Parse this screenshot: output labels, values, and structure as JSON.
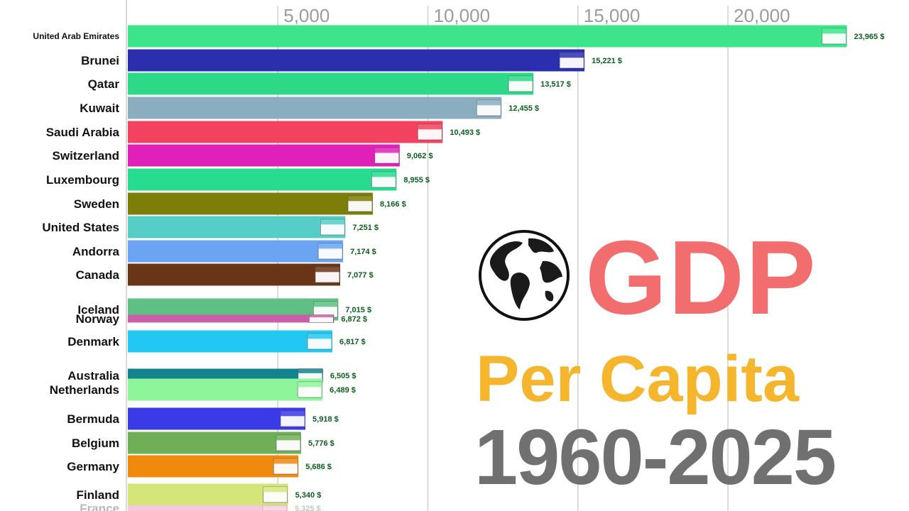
{
  "title": {
    "line1": "GDP",
    "line2": "Per Capita",
    "line3": "1960-2025"
  },
  "chart_data": {
    "type": "bar",
    "orientation": "horizontal",
    "x_ticks": [
      5000,
      10000,
      15000,
      20000
    ],
    "x_tick_labels": [
      "5,000",
      "10,000",
      "15,000",
      "20,000"
    ],
    "xlim": [
      0,
      24500
    ],
    "grid": true,
    "value_suffix": " $",
    "categories": [
      "United Arab Emirates",
      "Brunei",
      "Qatar",
      "Kuwait",
      "Saudi Arabia",
      "Switzerland",
      "Luxembourg",
      "Sweden",
      "United States",
      "Andorra",
      "Canada",
      "Iceland",
      "Norway",
      "Denmark",
      "Australia",
      "Netherlands",
      "Bermuda",
      "Belgium",
      "Germany",
      "Finland",
      "France"
    ],
    "values": [
      23965,
      15221,
      13517,
      12455,
      10493,
      9062,
      8955,
      8166,
      7251,
      7174,
      7077,
      7015,
      6872,
      6817,
      6505,
      6489,
      5918,
      5776,
      5686,
      5340,
      5325
    ],
    "value_labels": [
      "23,965 $",
      "15,221 $",
      "13,517 $",
      "12,455 $",
      "10,493 $",
      "9,062 $",
      "8,955 $",
      "8,166 $",
      "7,251 $",
      "7,174 $",
      "7,077 $",
      "7,015 $",
      "6,872 $",
      "6,817 $",
      "6,505 $",
      "6,489 $",
      "5,918 $",
      "5,776 $",
      "5,686 $",
      "5,340 $",
      "5,325 $"
    ],
    "colors": [
      "#3de58a",
      "#2b2fae",
      "#2dd987",
      "#8aaec0",
      "#f2425f",
      "#df21b8",
      "#27dc8e",
      "#7d7d09",
      "#56cdc7",
      "#6aa4f2",
      "#6a3517",
      "#5fbf84",
      "#c85fa8",
      "#22c8f2",
      "#13838e",
      "#8ef59a",
      "#3a3ae6",
      "#6fb057",
      "#ef8a0f",
      "#d4e67a",
      "#f5c8dc"
    ]
  }
}
